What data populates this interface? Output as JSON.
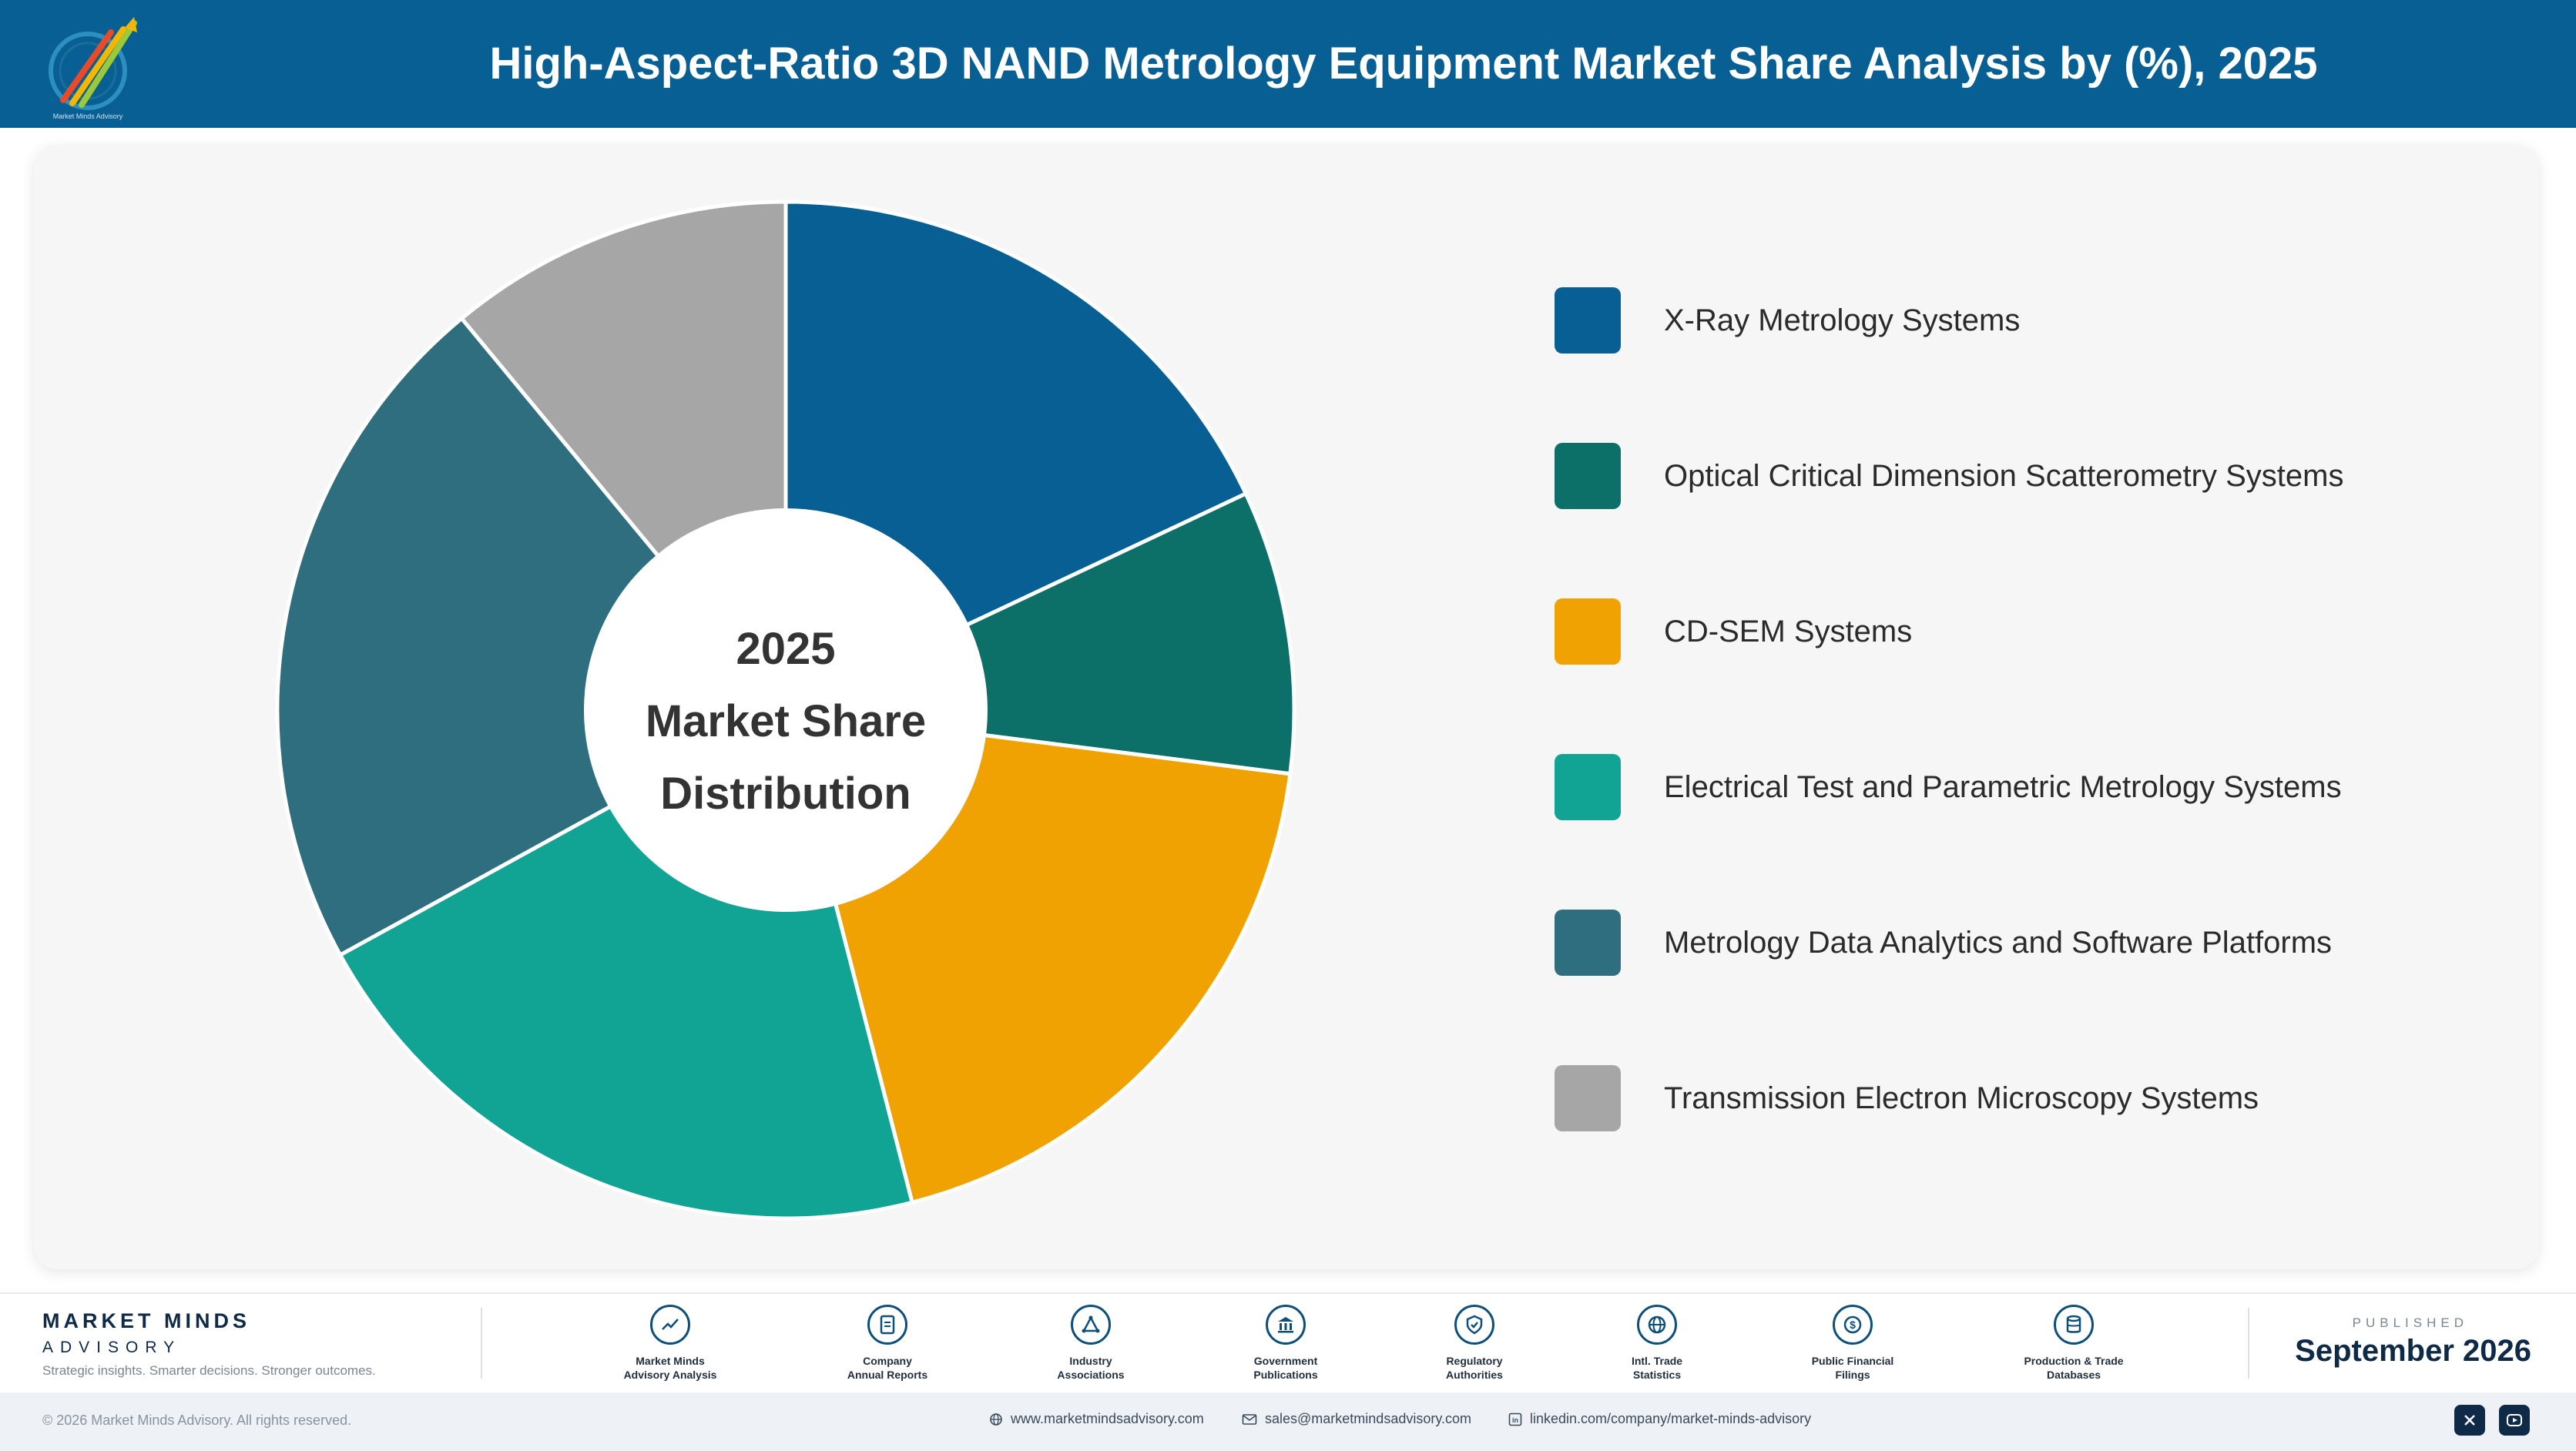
{
  "header": {
    "title": "High-Aspect-Ratio 3D NAND Metrology Equipment Market Share Analysis by (%), 2025",
    "logo_icon": "market-minds-logo"
  },
  "chart_data": {
    "type": "pie",
    "style": "donut",
    "title": "High-Aspect-Ratio 3D NAND Metrology Equipment Market Share Analysis by (%), 2025",
    "center_label": [
      "2025",
      "Market Share",
      "Distribution"
    ],
    "legend_position": "right",
    "categories": [
      "X-Ray Metrology Systems",
      "Optical Critical Dimension Scatterometry Systems",
      "CD-SEM Systems",
      "Electrical Test and Parametric Metrology Systems",
      "Metrology Data Analytics and Software Platforms",
      "Transmission Electron Microscopy Systems"
    ],
    "values": [
      18,
      9,
      19,
      21,
      22,
      11
    ],
    "colors": [
      "#075f93",
      "#0d7068",
      "#f0a202",
      "#11a393",
      "#2f6e7f",
      "#a6a6a6"
    ]
  },
  "footer": {
    "brand_name": "MARKET MINDS",
    "brand_sub": "ADVISORY",
    "tagline": "Strategic insights. Smarter decisions. Stronger outcomes.",
    "sources": [
      {
        "line1": "Market Minds",
        "line2": "Advisory Analysis",
        "icon": "trend-chart-icon"
      },
      {
        "line1": "Company",
        "line2": "Annual Reports",
        "icon": "document-icon"
      },
      {
        "line1": "Industry",
        "line2": "Associations",
        "icon": "network-icon"
      },
      {
        "line1": "Government",
        "line2": "Publications",
        "icon": "government-building-icon"
      },
      {
        "line1": "Regulatory",
        "line2": "Authorities",
        "icon": "shield-check-icon"
      },
      {
        "line1": "Intl. Trade",
        "line2": "Statistics",
        "icon": "globe-icon"
      },
      {
        "line1": "Public Financial",
        "line2": "Filings",
        "icon": "dollar-coin-icon"
      },
      {
        "line1": "Production & Trade",
        "line2": "Databases",
        "icon": "database-icon"
      }
    ],
    "published_label": "PUBLISHED",
    "published_date": "September 2026",
    "copyright": "© 2026 Market Minds Advisory. All rights reserved.",
    "website": "www.marketmindsadvisory.com",
    "email": "sales@marketmindsadvisory.com",
    "linkedin": "linkedin.com/company/market-minds-advisory",
    "social": [
      "x-icon",
      "youtube-icon"
    ]
  }
}
